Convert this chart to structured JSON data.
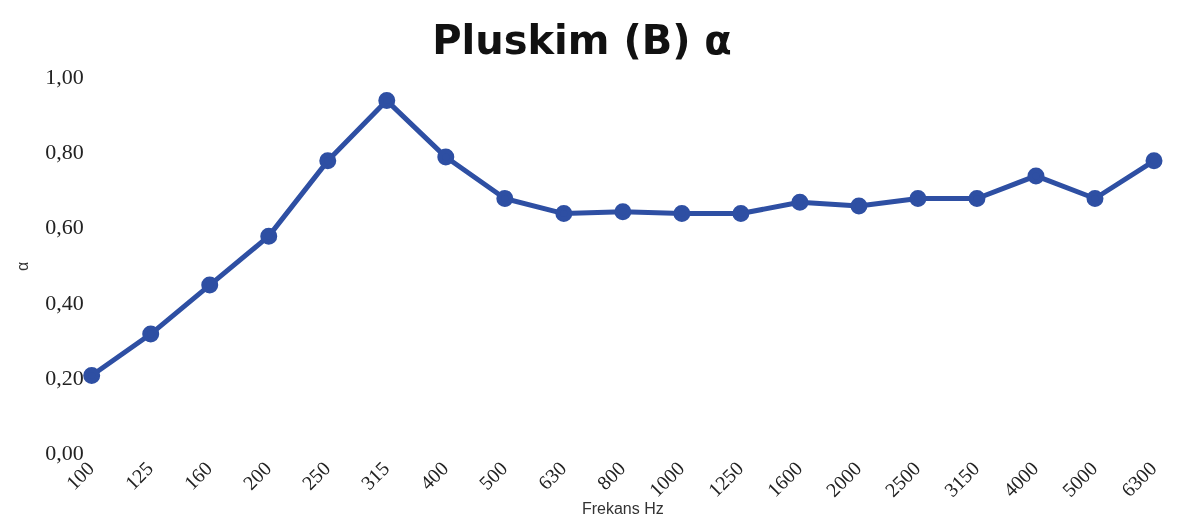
{
  "chart_data": {
    "type": "line",
    "title": "Pluskim (B) α",
    "xlabel": "Frekans Hz",
    "ylabel": "α",
    "categories": [
      "100",
      "125",
      "160",
      "200",
      "250",
      "315",
      "400",
      "500",
      "630",
      "800",
      "1000",
      "1250",
      "1600",
      "2000",
      "2500",
      "3150",
      "4000",
      "5000",
      "6300"
    ],
    "series": [
      {
        "color": "#2e4fa3",
        "values": [
          0.21,
          0.32,
          0.45,
          0.58,
          0.78,
          0.94,
          0.79,
          0.68,
          0.64,
          0.645,
          0.64,
          0.64,
          0.67,
          0.66,
          0.68,
          0.68,
          0.74,
          0.68,
          0.78
        ]
      }
    ],
    "ylim": [
      0,
      1
    ],
    "yticks": [
      {
        "value": 0,
        "label": "0,00"
      },
      {
        "value": 0.2,
        "label": "0,20"
      },
      {
        "value": 0.4,
        "label": "0,40"
      },
      {
        "value": 0.6,
        "label": "0,60"
      },
      {
        "value": 0.8,
        "label": "0,80"
      },
      {
        "value": 1,
        "label": "1,00"
      }
    ],
    "grid": false,
    "legend": false,
    "marker": "circle",
    "line_style": "solid"
  }
}
